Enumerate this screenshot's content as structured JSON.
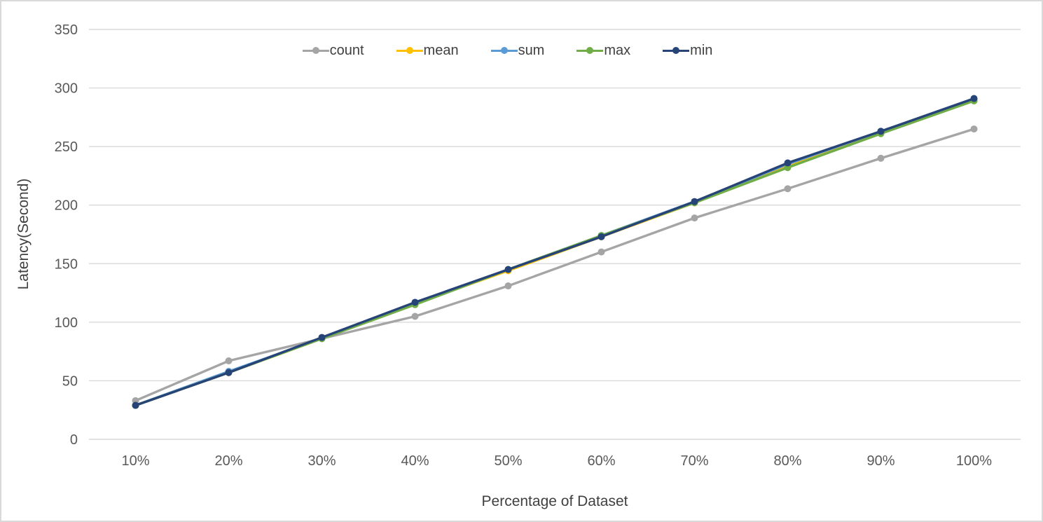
{
  "chart_data": {
    "type": "line",
    "title": "",
    "xlabel": "Percentage of Dataset",
    "ylabel": "Latency(Second)",
    "categories": [
      "10%",
      "20%",
      "30%",
      "40%",
      "50%",
      "60%",
      "70%",
      "80%",
      "90%",
      "100%"
    ],
    "series": [
      {
        "name": "count",
        "color": "#a5a5a5",
        "values": [
          33,
          67,
          86,
          105,
          131,
          160,
          189,
          214,
          240,
          265
        ]
      },
      {
        "name": "mean",
        "color": "#ffc000",
        "values": [
          29,
          57,
          86,
          116,
          144,
          173,
          202,
          234,
          262,
          290
        ]
      },
      {
        "name": "sum",
        "color": "#5b9bd5",
        "values": [
          29,
          58,
          86,
          116,
          145,
          174,
          203,
          235,
          263,
          291
        ]
      },
      {
        "name": "max",
        "color": "#70ad47",
        "values": [
          29,
          57,
          86,
          115,
          145,
          174,
          202,
          232,
          261,
          289
        ]
      },
      {
        "name": "min",
        "color": "#264478",
        "values": [
          29,
          57,
          87,
          117,
          145,
          173,
          203,
          236,
          263,
          291
        ]
      }
    ],
    "ylim": [
      0,
      350
    ],
    "ytick_step": 50,
    "grid": true,
    "legend_position": "top",
    "gridline_color": "#d9d9d9",
    "tick_label_color": "#595959",
    "axis_label_color": "#404040",
    "background_color": "#ffffff"
  }
}
